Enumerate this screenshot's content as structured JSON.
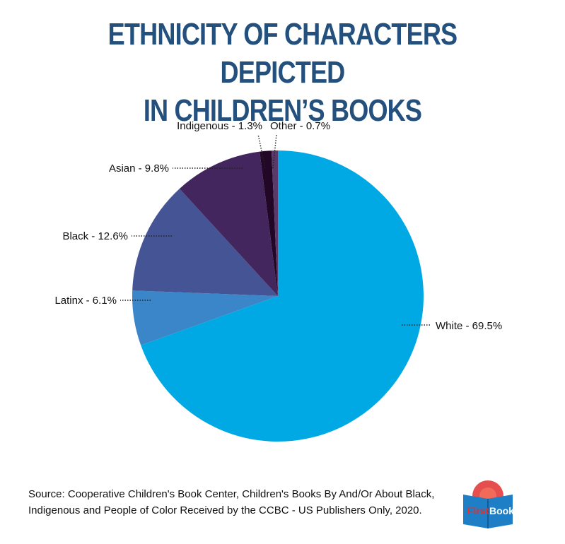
{
  "title": {
    "line1": "ETHNICITY OF CHARACTERS DEPICTED",
    "line2": "IN CHILDREN’S BOOKS"
  },
  "chart_data": {
    "type": "pie",
    "title": "Ethnicity of Characters Depicted in Children’s Books",
    "slices": [
      {
        "name": "White",
        "value": 69.5,
        "label": "White - 69.5%",
        "color": "#00a9e3"
      },
      {
        "name": "Latinx",
        "value": 6.1,
        "label": "Latinx - 6.1%",
        "color": "#3a86c8"
      },
      {
        "name": "Black",
        "value": 12.6,
        "label": "Black - 12.6%",
        "color": "#445494"
      },
      {
        "name": "Asian",
        "value": 9.8,
        "label": "Asian - 9.8%",
        "color": "#43265e"
      },
      {
        "name": "Indigenous",
        "value": 1.3,
        "label": "Indigenous - 1.3%",
        "color": "#220826"
      },
      {
        "name": "Other",
        "value": 0.7,
        "label": "Other - 0.7%",
        "color": "#5a3a6a"
      }
    ]
  },
  "source": {
    "line1": "Source: Cooperative Children's Book Center, Children's Books By And/Or About Black,",
    "line2": "Indigenous and People of Color Received by the CCBC - US Publishers Only, 2020."
  },
  "logo": {
    "first": "First",
    "book": "Book",
    "colors": {
      "red": "#e0312f",
      "blue": "#1f7fc6"
    }
  }
}
